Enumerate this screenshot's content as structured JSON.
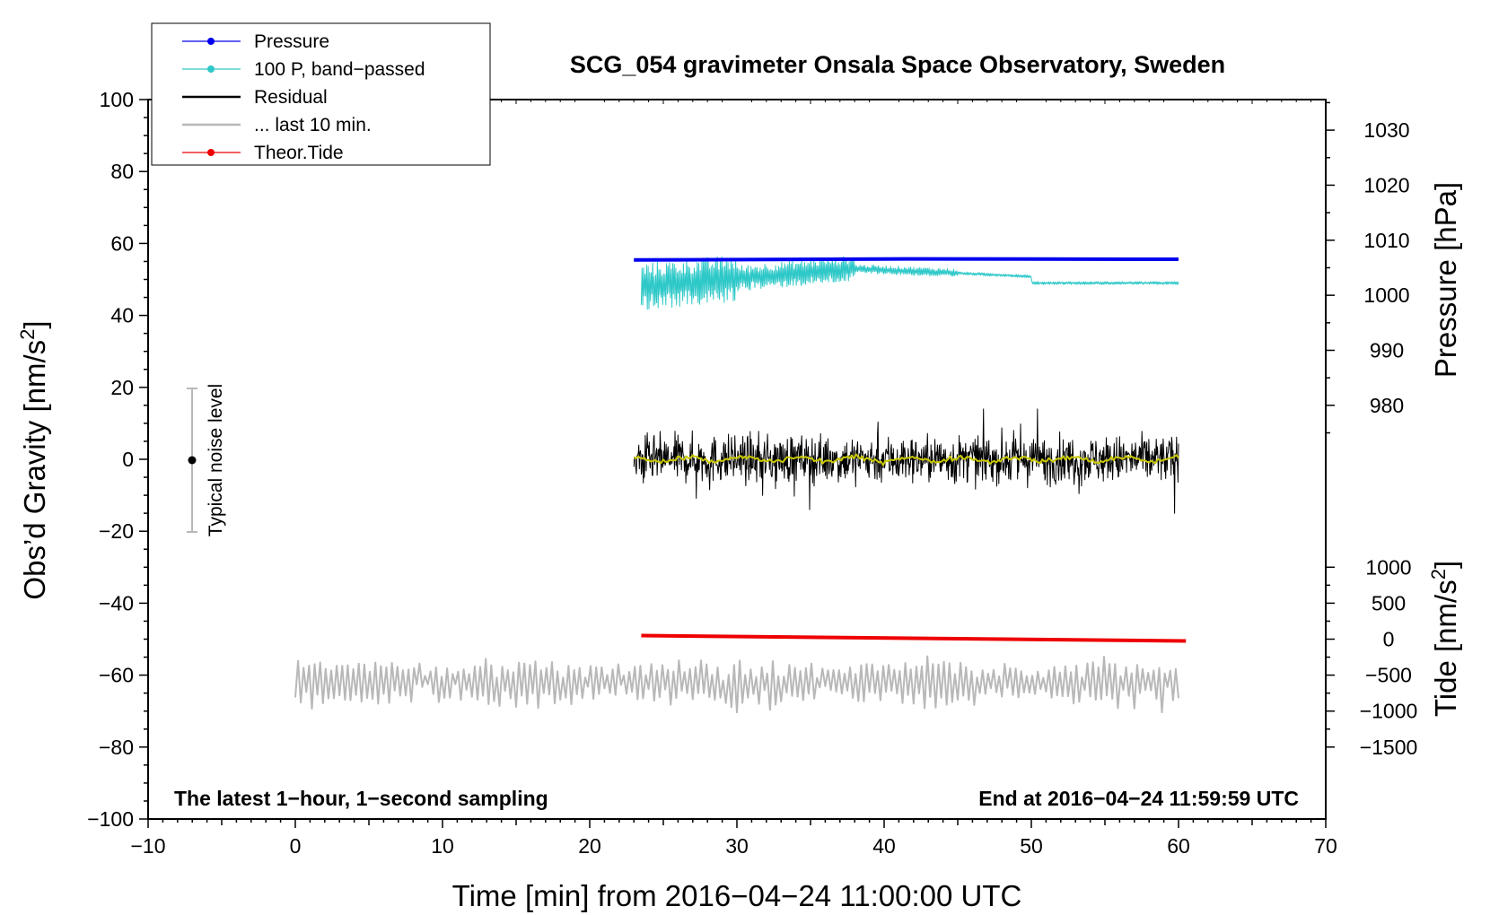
{
  "chart_data": {
    "type": "line",
    "title": "SCG_054 gravimeter Onsala Space Observatory, Sweden",
    "xlabel": "Time [min] from 2016−04−24 11:00:00 UTC",
    "ylabel_left": "Obs’d Gravity [nm/s²]",
    "ylabel_pressure": "Pressure [hPa]",
    "ylabel_tide": "Tide [nm/s²]",
    "xlim": [
      -10,
      70
    ],
    "ylim": [
      -100,
      100
    ],
    "x_ticks": [
      -10,
      0,
      10,
      20,
      30,
      40,
      50,
      60,
      70
    ],
    "x_tick_labels": [
      "−10",
      "0",
      "10",
      "20",
      "30",
      "40",
      "50",
      "60",
      "70"
    ],
    "y_ticks": [
      -100,
      -80,
      -60,
      -40,
      -20,
      0,
      20,
      40,
      60,
      80,
      100
    ],
    "y_tick_labels": [
      "−100",
      "−80",
      "−60",
      "−40",
      "−20",
      "0",
      "20",
      "40",
      "60",
      "80",
      "100"
    ],
    "pressure_axis": {
      "ticks": [
        980,
        990,
        1000,
        1010,
        1020,
        1030
      ],
      "tick_labels": [
        "980",
        "990",
        "1000",
        "1010",
        "1020",
        "1030"
      ],
      "gravity_at_980": 15,
      "gravity_per_hpa": 1.53
    },
    "tide_axis": {
      "ticks": [
        -1500,
        -1000,
        -500,
        0,
        500,
        1000
      ],
      "tide_labels": [
        "−1500",
        "−1000",
        "−500",
        "0",
        "500",
        "1000"
      ],
      "gravity_at_0": -50,
      "gravity_per_unit": 0.02
    },
    "legend": [
      {
        "label": "Pressure",
        "color": "#0000ee",
        "marker": true
      },
      {
        "label": "100 P, band−passed",
        "color": "#2ec8c8",
        "marker": true
      },
      {
        "label": "Residual",
        "color": "#000000",
        "marker": false
      },
      {
        "label": "... last 10 min.",
        "color": "#b8b8b8",
        "marker": false
      },
      {
        "label": "Theor.Tide",
        "color": "#ee0000",
        "marker": true
      }
    ],
    "series": [
      {
        "name": "Pressure",
        "color": "#0000ee",
        "x_range": [
          23,
          60
        ],
        "start": 55.4,
        "end": 55.6
      },
      {
        "name": "100 P, band−passed",
        "color": "#2ec8c8",
        "x_range": [
          23.5,
          60
        ],
        "start": 46,
        "end": 49
      },
      {
        "name": "Residual",
        "color": "#000000",
        "x_range": [
          23,
          60
        ],
        "mean": 0,
        "amplitude": 15
      },
      {
        "name": "Residual smoothed",
        "color": "#c8c800",
        "x_range": [
          23,
          60
        ],
        "mean": 0
      },
      {
        "name": "... last 10 min.",
        "color": "#b8b8b8",
        "x_range": [
          0,
          60
        ],
        "mean": -62,
        "amplitude": 16
      },
      {
        "name": "Theor.Tide",
        "color": "#ee0000",
        "x_range": [
          23.5,
          60.5
        ],
        "start": -49,
        "end": -50.5
      }
    ],
    "noise_indicator": {
      "label": "Typical noise level",
      "x": -7,
      "center": 0,
      "range": [
        -20,
        20
      ]
    },
    "left_note": "The latest 1−hour, 1−second sampling",
    "right_note": "End at 2016−04−24 11:59:59 UTC"
  }
}
